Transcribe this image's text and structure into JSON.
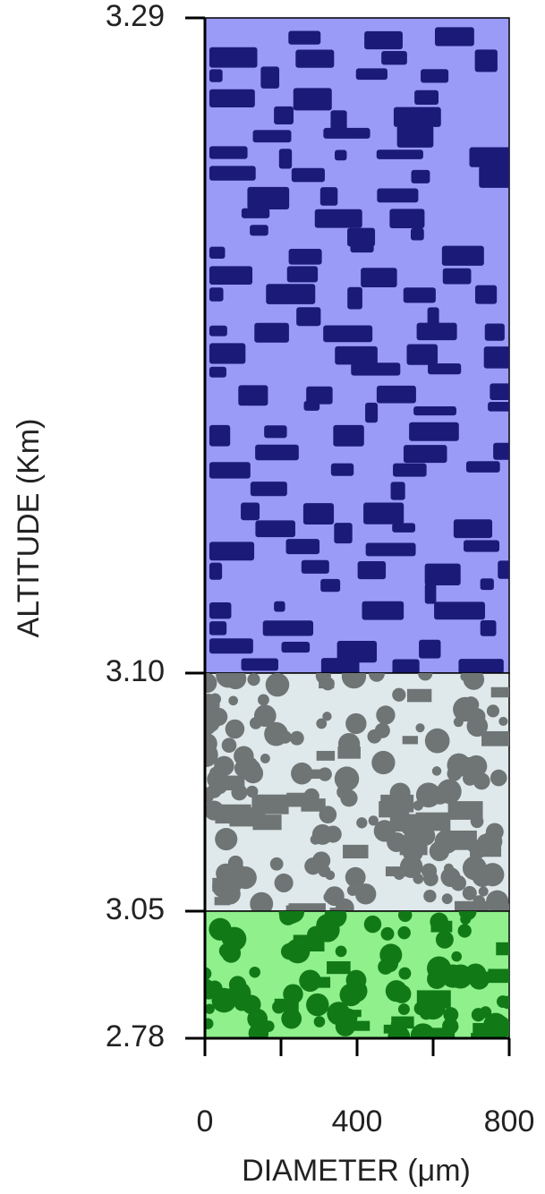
{
  "chart_data": {
    "type": "layers",
    "y_label": "ALTITUDE  (Km)",
    "x_label": "DIAMETER  (μm)",
    "yticks": [
      3.29,
      {
        "value": 3.1,
        "label": "3.10"
      },
      3.05,
      2.78
    ],
    "xlim": [
      0,
      800
    ],
    "xticks": [
      0,
      400,
      800
    ],
    "xminorticks": [
      200,
      600
    ],
    "layers": [
      {
        "color": "#9a9af7",
        "particle_color": "#1b1a78"
      },
      {
        "color": "#dfe9ec",
        "particle_color": "#6f7474"
      },
      {
        "color": "#8ff08c",
        "particle_color": "#117a17"
      }
    ]
  }
}
